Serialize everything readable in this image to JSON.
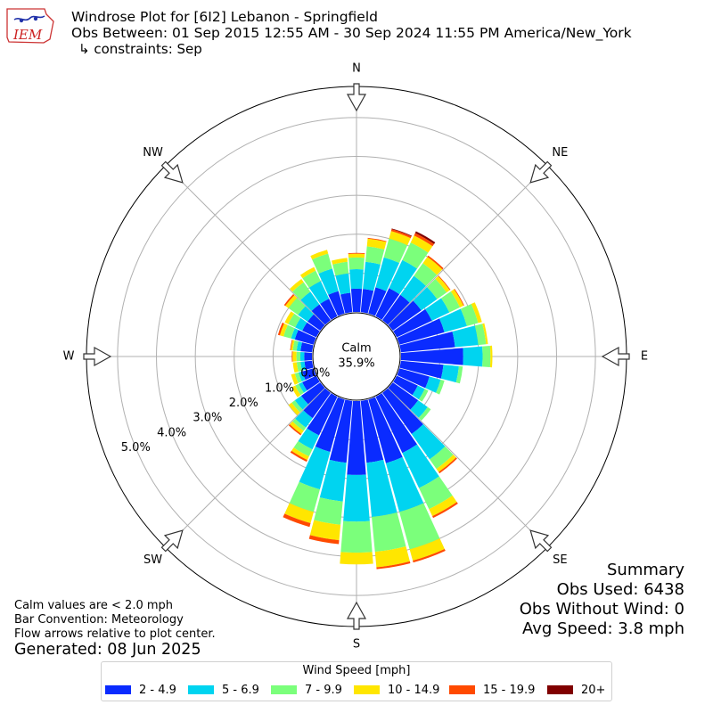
{
  "header": {
    "title": "Windrose Plot for [6I2] Lebanon - Springfield",
    "period": "Obs Between: 01 Sep 2015 12:55 AM - 30 Sep 2024 11:55 PM America/New_York",
    "constraints": "↳ constraints: Sep"
  },
  "logo": {
    "text": "IEM",
    "color": "#cc2222"
  },
  "summary": {
    "heading": "Summary",
    "obs_used": "Obs Used: 6438",
    "obs_without_wind": "Obs Without Wind: 0",
    "avg_speed": "Avg Speed: 3.8 mph"
  },
  "notes": {
    "calm_def": "Calm values are < 2.0 mph",
    "bar_convention": "Bar Convention: Meteorology",
    "flow_arrows": "Flow arrows relative to plot center.",
    "generated": "Generated: 08 Jun 2025"
  },
  "legend": {
    "title": "Wind Speed [mph]",
    "items": [
      "2 - 4.9",
      "5 - 6.9",
      "7 - 9.9",
      "10 - 14.9",
      "15 - 19.9",
      "20+"
    ]
  },
  "chart_data": {
    "type": "windrose",
    "calm": {
      "label": "Calm",
      "value": "35.9%"
    },
    "directions": [
      "N",
      "NE",
      "E",
      "SE",
      "S",
      "SW",
      "W",
      "NW"
    ],
    "radial_ticks": [
      "0.0%",
      "1.0%",
      "2.0%",
      "3.0%",
      "4.0%",
      "5.0%"
    ],
    "radial_max": 5.8,
    "bins": [
      "2 - 4.9",
      "5 - 6.9",
      "7 - 9.9",
      "10 - 14.9",
      "15 - 19.9",
      "20+"
    ],
    "colors": [
      "#0a2bff",
      "#00d4f0",
      "#7bff7b",
      "#ffe600",
      "#ff4a00",
      "#800000"
    ],
    "sectors": [
      {
        "dir_deg": 0,
        "values": [
          0.6,
          0.5,
          0.3,
          0.1,
          0.02,
          0.0
        ]
      },
      {
        "dir_deg": 10,
        "values": [
          0.6,
          0.7,
          0.4,
          0.2,
          0.02,
          0.0
        ]
      },
      {
        "dir_deg": 20,
        "values": [
          0.7,
          0.8,
          0.5,
          0.2,
          0.05,
          0.02
        ]
      },
      {
        "dir_deg": 30,
        "values": [
          0.8,
          0.8,
          0.5,
          0.2,
          0.07,
          0.05
        ]
      },
      {
        "dir_deg": 40,
        "values": [
          0.8,
          0.6,
          0.4,
          0.2,
          0.04,
          0.0
        ]
      },
      {
        "dir_deg": 50,
        "values": [
          0.9,
          0.5,
          0.3,
          0.1,
          0.02,
          0.0
        ]
      },
      {
        "dir_deg": 60,
        "values": [
          1.0,
          0.5,
          0.3,
          0.1,
          0.02,
          0.0
        ]
      },
      {
        "dir_deg": 70,
        "values": [
          1.2,
          0.6,
          0.3,
          0.1,
          0.0,
          0.0
        ]
      },
      {
        "dir_deg": 80,
        "values": [
          1.4,
          0.6,
          0.2,
          0.05,
          0.0,
          0.0
        ]
      },
      {
        "dir_deg": 90,
        "values": [
          1.6,
          0.5,
          0.2,
          0.05,
          0.0,
          0.0
        ]
      },
      {
        "dir_deg": 100,
        "values": [
          1.1,
          0.4,
          0.1,
          0.0,
          0.0,
          0.0
        ]
      },
      {
        "dir_deg": 110,
        "values": [
          0.8,
          0.3,
          0.1,
          0.0,
          0.0,
          0.0
        ]
      },
      {
        "dir_deg": 120,
        "values": [
          0.6,
          0.2,
          0.1,
          0.0,
          0.0,
          0.0
        ]
      },
      {
        "dir_deg": 130,
        "values": [
          0.8,
          0.3,
          0.1,
          0.0,
          0.0,
          0.0
        ]
      },
      {
        "dir_deg": 140,
        "values": [
          1.3,
          0.8,
          0.3,
          0.1,
          0.04,
          0.0
        ]
      },
      {
        "dir_deg": 150,
        "values": [
          1.6,
          1.0,
          0.6,
          0.2,
          0.05,
          0.0
        ]
      },
      {
        "dir_deg": 160,
        "values": [
          1.7,
          1.3,
          1.0,
          0.3,
          0.05,
          0.0
        ]
      },
      {
        "dir_deg": 170,
        "values": [
          1.6,
          1.4,
          0.9,
          0.4,
          0.05,
          0.0
        ]
      },
      {
        "dir_deg": 180,
        "values": [
          1.9,
          1.2,
          0.8,
          0.3,
          0.0,
          0.0
        ]
      },
      {
        "dir_deg": 190,
        "values": [
          1.6,
          1.0,
          0.6,
          0.4,
          0.1,
          0.0
        ]
      },
      {
        "dir_deg": 200,
        "values": [
          1.4,
          1.0,
          0.6,
          0.3,
          0.1,
          0.0
        ]
      },
      {
        "dir_deg": 210,
        "values": [
          1.1,
          0.4,
          0.2,
          0.1,
          0.05,
          0.0
        ]
      },
      {
        "dir_deg": 220,
        "values": [
          0.8,
          0.3,
          0.1,
          0.1,
          0.04,
          0.0
        ]
      },
      {
        "dir_deg": 230,
        "values": [
          0.6,
          0.2,
          0.1,
          0.1,
          0.0,
          0.0
        ]
      },
      {
        "dir_deg": 240,
        "values": [
          0.4,
          0.1,
          0.1,
          0.1,
          0.0,
          0.0
        ]
      },
      {
        "dir_deg": 250,
        "values": [
          0.3,
          0.1,
          0.1,
          0.1,
          0.0,
          0.0
        ]
      },
      {
        "dir_deg": 260,
        "values": [
          0.2,
          0.1,
          0.1,
          0.1,
          0.0,
          0.0
        ]
      },
      {
        "dir_deg": 270,
        "values": [
          0.2,
          0.1,
          0.1,
          0.1,
          0.02,
          0.0
        ]
      },
      {
        "dir_deg": 280,
        "values": [
          0.3,
          0.1,
          0.1,
          0.05,
          0.02,
          0.0
        ]
      },
      {
        "dir_deg": 290,
        "values": [
          0.5,
          0.1,
          0.2,
          0.1,
          0.05,
          0.0
        ]
      },
      {
        "dir_deg": 300,
        "values": [
          0.4,
          0.2,
          0.2,
          0.1,
          0.0,
          0.0
        ]
      },
      {
        "dir_deg": 310,
        "values": [
          0.4,
          0.3,
          0.3,
          0.1,
          0.04,
          0.0
        ]
      },
      {
        "dir_deg": 320,
        "values": [
          0.5,
          0.4,
          0.3,
          0.1,
          0.0,
          0.0
        ]
      },
      {
        "dir_deg": 330,
        "values": [
          0.5,
          0.5,
          0.3,
          0.1,
          0.0,
          0.0
        ]
      },
      {
        "dir_deg": 340,
        "values": [
          0.6,
          0.6,
          0.4,
          0.1,
          0.0,
          0.0
        ]
      },
      {
        "dir_deg": 350,
        "values": [
          0.5,
          0.5,
          0.3,
          0.1,
          0.0,
          0.0
        ]
      }
    ]
  }
}
